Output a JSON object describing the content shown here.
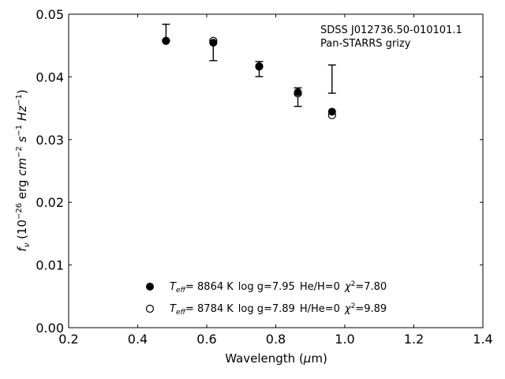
{
  "chart_data": {
    "type": "scatter",
    "title": "",
    "xlabel_pre": "Wavelength (",
    "xlabel_mu": "μ",
    "xlabel_post": "m)",
    "ylabel": "f_ν (10^-26 erg cm^-2 s^-1 Hz^-1)",
    "xlim": [
      0.2,
      1.4
    ],
    "ylim": [
      0.0,
      0.05
    ],
    "xticks": [
      0.2,
      0.4,
      0.6,
      0.8,
      1.0,
      1.2,
      1.4
    ],
    "xtick_labels": [
      "0.2",
      "0.4",
      "0.6",
      "0.8",
      "1.0",
      "1.2",
      "1.4"
    ],
    "yticks": [
      0.0,
      0.01,
      0.02,
      0.03,
      0.04,
      0.05
    ],
    "ytick_labels": [
      "0.00",
      "0.01",
      "0.02",
      "0.03",
      "0.04",
      "0.05"
    ],
    "grid": false,
    "annotation": [
      "SDSS J012736.50-010101.1",
      "Pan-STARRS grizy"
    ],
    "observed": {
      "x": [
        0.482,
        0.619,
        0.864,
        0.963
      ],
      "y": [
        0.04575,
        0.04485,
        0.0358,
        0.03965
      ],
      "yerr_low": [
        0.04575,
        0.0426,
        0.0353,
        0.0374
      ],
      "yerr_high": [
        0.0484,
        0.0454,
        0.03825,
        0.0419
      ],
      "extra_point": {
        "x": 0.752,
        "y_low": 0.04005,
        "y_high": 0.04245
      }
    },
    "series": [
      {
        "name": "T_eff= 8864 K log g=7.95 He/H=0 χ²=7.80",
        "marker": "filled-circle",
        "x": [
          0.482,
          0.619,
          0.752,
          0.864,
          0.963
        ],
        "y": [
          0.04575,
          0.04545,
          0.0417,
          0.03755,
          0.03445
        ]
      },
      {
        "name": "T_eff= 8784 K log g=7.89 H/He=0 χ²=9.89",
        "marker": "open-circle",
        "x": [
          0.482,
          0.619,
          0.752,
          0.864,
          0.963
        ],
        "y": [
          0.04575,
          0.04575,
          0.04165,
          0.03735,
          0.0339
        ]
      }
    ],
    "legend": {
      "placement": "lower-center",
      "entries": [
        {
          "teff_val": "=  8864 K",
          "logg": "log g=7.95",
          "comp": "He/H=0",
          "chi_val": "=7.80"
        },
        {
          "teff_val": "=  8784 K",
          "logg": "log g=7.89",
          "comp": "H/He=0",
          "chi_val": "=9.89"
        }
      ]
    }
  }
}
